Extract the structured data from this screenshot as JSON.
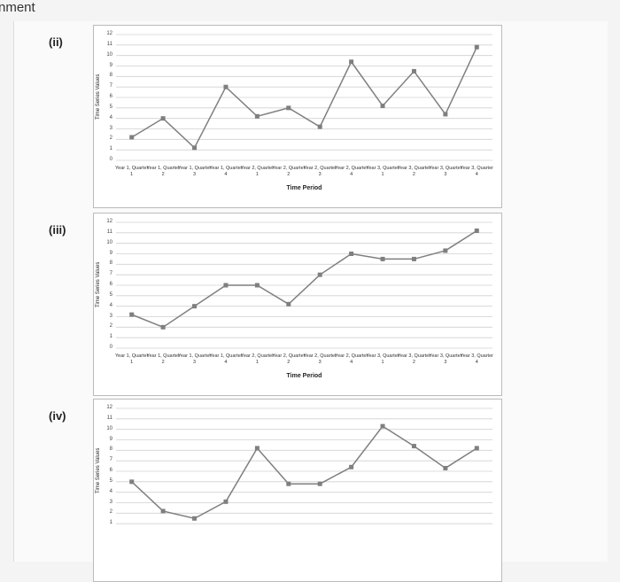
{
  "page_title": "nment",
  "chart_data": [
    {
      "type": "line",
      "label": "(ii)",
      "color": "#7f7f7f",
      "grid": true,
      "ylabel": "Time Series Values",
      "xlabel": "Time Period",
      "categories": [
        "Year 1, Quarter 1",
        "Year 1, Quarter 2",
        "Year 1, Quarter 3",
        "Year 1, Quarter 4",
        "Year 2, Quarter 1",
        "Year 2, Quarter 2",
        "Year 2, Quarter 3",
        "Year 2, Quarter 4",
        "Year 3, Quarter 1",
        "Year 3, Quarter 2",
        "Year 3, Quarter 3",
        "Year 3, Quarter 4"
      ],
      "values": [
        2.2,
        4,
        1.2,
        7,
        4.2,
        5,
        3.2,
        9.4,
        5.2,
        8.5,
        4.4,
        10.8
      ],
      "ylim": [
        0,
        12
      ],
      "yticks": [
        0,
        1,
        2,
        3,
        4,
        5,
        6,
        7,
        8,
        9,
        10,
        11,
        12
      ]
    },
    {
      "type": "line",
      "label": "(iii)",
      "color": "#7f7f7f",
      "grid": true,
      "ylabel": "Time Series Values",
      "xlabel": "Time Period",
      "categories": [
        "Year 1, Quarter 1",
        "Year 1, Quarter 2",
        "Year 1, Quarter 3",
        "Year 1, Quarter 4",
        "Year 2, Quarter 1",
        "Year 2, Quarter 2",
        "Year 2, Quarter 3",
        "Year 2, Quarter 4",
        "Year 3, Quarter 1",
        "Year 3, Quarter 2",
        "Year 3, Quarter 3",
        "Year 3, Quarter 4"
      ],
      "values": [
        3.2,
        2,
        4,
        6,
        6,
        4.2,
        7,
        9,
        8.5,
        8.5,
        9.3,
        11.2
      ],
      "ylim": [
        0,
        12
      ],
      "yticks": [
        0,
        1,
        2,
        3,
        4,
        5,
        6,
        7,
        8,
        9,
        10,
        11,
        12
      ]
    },
    {
      "type": "line",
      "label": "(iv)",
      "color": "#7f7f7f",
      "grid": true,
      "ylabel": "Time Series Values",
      "values": [
        5,
        2.2,
        1.5,
        3.1,
        8.2,
        4.8,
        4.8,
        6.4,
        10.3,
        8.4,
        6.3,
        8.2
      ],
      "ylim": [
        0,
        12
      ],
      "yticks": [
        1,
        2,
        3,
        4,
        5,
        6,
        7,
        8,
        9,
        10,
        11,
        12
      ]
    }
  ]
}
